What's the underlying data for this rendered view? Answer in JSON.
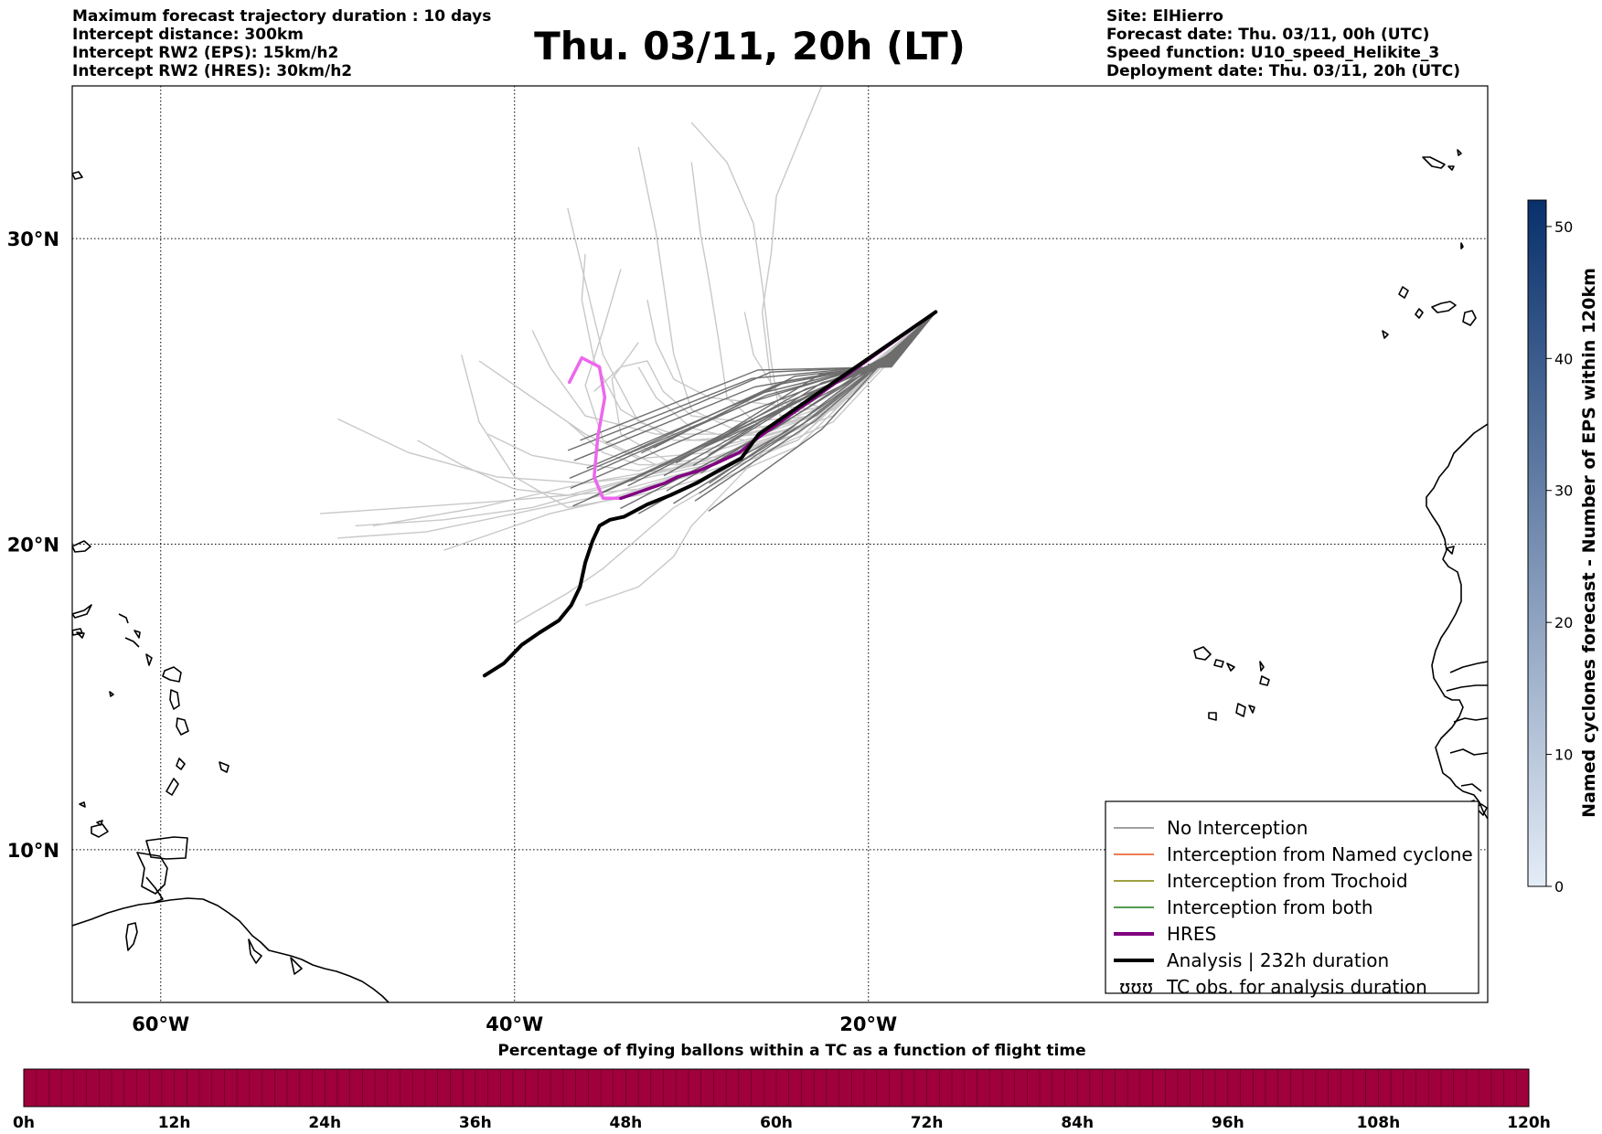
{
  "header": {
    "left": [
      "Maximum forecast trajectory duration : 10 days",
      "Intercept distance: 300km",
      "Intercept RW2 (EPS):  15km/h2",
      "Intercept RW2 (HRES): 30km/h2"
    ],
    "title": "Thu. 03/11, 20h (LT)",
    "right": [
      "Site: ElHierro",
      "Forecast date: Thu. 03/11, 00h (UTC)",
      "Speed function: U10_speed_Helikite_3",
      "Deployment date: Thu. 03/11, 20h (UTC)"
    ]
  },
  "map": {
    "lon_range": [
      -65,
      15
    ],
    "lat_range": [
      5,
      35
    ],
    "lat_labels": [
      {
        "lat": 30,
        "label": "30°N"
      },
      {
        "lat": 20,
        "label": "20°N"
      },
      {
        "lat": 10,
        "label": "10°N"
      }
    ],
    "lon_labels": [
      {
        "lon": -60,
        "label": "60°W"
      },
      {
        "lon": -40,
        "label": "40°W"
      },
      {
        "lon": -20,
        "label": "20°W"
      }
    ],
    "colors": {
      "eps_light": "#c8c8c8",
      "eps_dark": "#6e6e6e",
      "hres": "#800080",
      "hres_pink": "#ee66ee",
      "analysis": "#000000"
    }
  },
  "legend": {
    "items": [
      {
        "label": "No Interception",
        "color": "#808080",
        "width": 1.5
      },
      {
        "label": "Interception from Named cyclone",
        "color": "#e8541c",
        "width": 1.5
      },
      {
        "label": "Interception from Trochoid",
        "color": "#808000",
        "width": 1.5
      },
      {
        "label": "Interception from both",
        "color": "#1a7a1a",
        "width": 1.5
      },
      {
        "label": "HRES",
        "color": "#800080",
        "width": 4
      },
      {
        "label": "Analysis | 232h duration",
        "color": "#000000",
        "width": 4
      },
      {
        "label": "TC obs. for analysis duration",
        "symbol": "ʊʊʊ"
      }
    ]
  },
  "colorbar_right": {
    "label": "Named cyclones forecast - Number of EPS within 120km",
    "ticks": [
      "0",
      "10",
      "20",
      "30",
      "40",
      "50"
    ],
    "range": [
      0,
      52
    ],
    "color_low": "#e4ecf7",
    "color_high": "#08306b"
  },
  "colorbar_bottom": {
    "title": "Percentage of flying ballons within a TC as a function of flight time",
    "ticks": [
      "0h",
      "12h",
      "24h",
      "36h",
      "48h",
      "60h",
      "72h",
      "84h",
      "96h",
      "108h",
      "120h"
    ],
    "fill_color": "#a0003c"
  },
  "chart_data": {
    "type": "line",
    "series": [
      {
        "name": "HRES",
        "points": [
          [
            -26.2,
            23.5
          ],
          [
            -27.3,
            23.0
          ],
          [
            -28.4,
            22.7
          ],
          [
            -29.6,
            22.4
          ],
          [
            -30.8,
            22.2
          ],
          [
            -31.5,
            22.0
          ],
          [
            -32.5,
            21.8
          ],
          [
            -34.0,
            21.5
          ],
          [
            -35.0,
            21.5
          ],
          [
            -35.5,
            22.2
          ],
          [
            -35.3,
            23.5
          ],
          [
            -34.9,
            24.8
          ],
          [
            -35.2,
            25.8
          ],
          [
            -36.2,
            26.1
          ],
          [
            -36.9,
            25.3
          ]
        ]
      },
      {
        "name": "Analysis | 232h duration",
        "points": [
          [
            -26.2,
            23.6
          ],
          [
            -27.2,
            22.8
          ],
          [
            -28.5,
            22.4
          ],
          [
            -29.7,
            22.0
          ],
          [
            -31.2,
            21.6
          ],
          [
            -32.5,
            21.3
          ],
          [
            -33.8,
            20.9
          ],
          [
            -34.6,
            20.8
          ],
          [
            -35.2,
            20.6
          ],
          [
            -35.6,
            20.1
          ],
          [
            -36.0,
            19.4
          ],
          [
            -36.3,
            18.6
          ],
          [
            -36.8,
            18.0
          ],
          [
            -37.5,
            17.5
          ],
          [
            -38.6,
            17.1
          ],
          [
            -39.6,
            16.7
          ],
          [
            -40.6,
            16.1
          ],
          [
            -41.7,
            15.7
          ]
        ]
      }
    ]
  }
}
